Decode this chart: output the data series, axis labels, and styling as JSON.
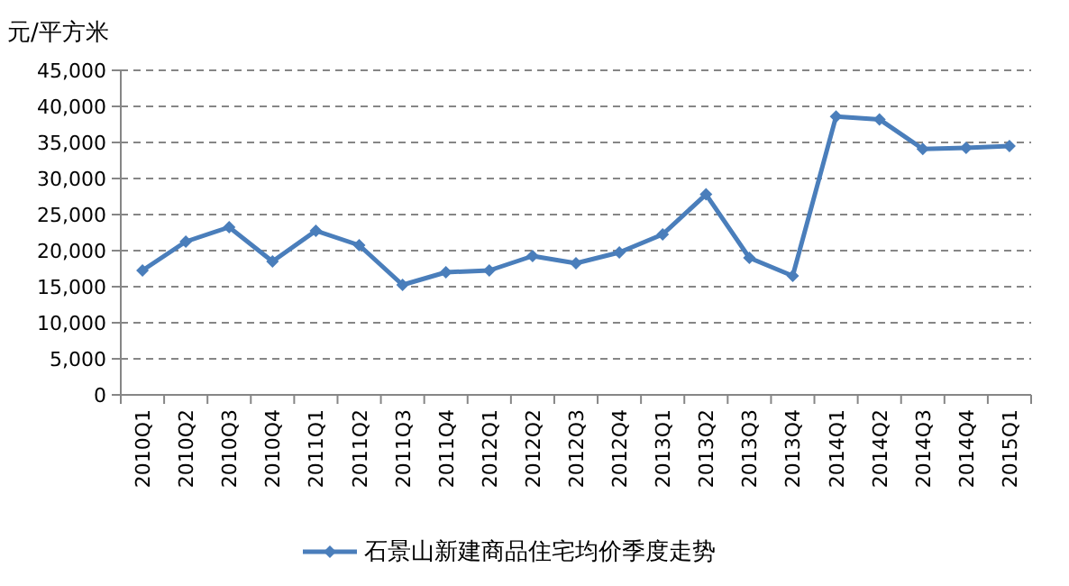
{
  "chart_data": {
    "type": "line",
    "ylabel": "元/平方米",
    "categories": [
      "2010Q1",
      "2010Q2",
      "2010Q3",
      "2010Q4",
      "2011Q1",
      "2011Q2",
      "2011Q3",
      "2011Q4",
      "2012Q1",
      "2012Q2",
      "2012Q3",
      "2012Q4",
      "2013Q1",
      "2013Q2",
      "2013Q3",
      "2013Q4",
      "2014Q1",
      "2014Q2",
      "2014Q3",
      "2014Q4",
      "2015Q1"
    ],
    "series": [
      {
        "name": "石景山新建商品住宅均价季度走势",
        "color": "#4a7ebb",
        "values": [
          17250,
          21250,
          23250,
          18500,
          22750,
          20750,
          15250,
          17000,
          17250,
          19250,
          18250,
          19750,
          22250,
          27800,
          19000,
          16500,
          38600,
          38200,
          34100,
          34250,
          34500
        ]
      }
    ],
    "ylim": [
      0,
      45000
    ],
    "yticks": [
      {
        "value": 0,
        "label": "0"
      },
      {
        "value": 5000,
        "label": "5,000"
      },
      {
        "value": 10000,
        "label": "10,000"
      },
      {
        "value": 15000,
        "label": "15,000"
      },
      {
        "value": 20000,
        "label": "20,000"
      },
      {
        "value": 25000,
        "label": "25,000"
      },
      {
        "value": 30000,
        "label": "30,000"
      },
      {
        "value": 35000,
        "label": "35,000"
      },
      {
        "value": 40000,
        "label": "40,000"
      },
      {
        "value": 45000,
        "label": "45,000"
      }
    ],
    "grid": "y",
    "legend": "bottom",
    "marker": "diamond",
    "line_style": "solid"
  }
}
